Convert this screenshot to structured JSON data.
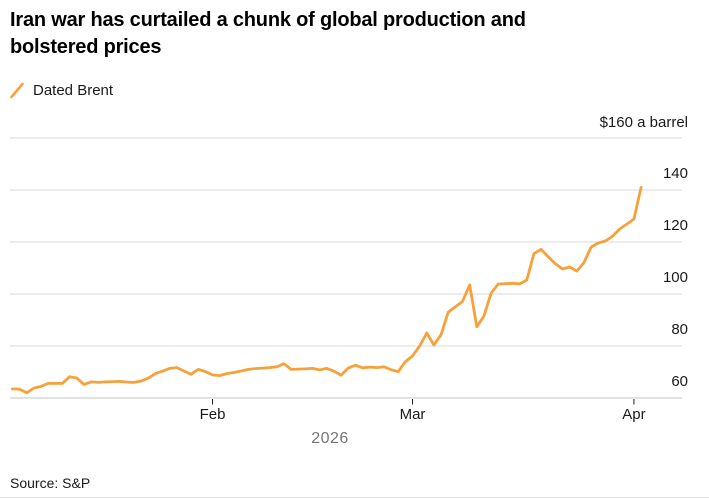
{
  "header": {
    "title_line1": "Iran war has curtailed a chunk of global production and",
    "title_line2": "bolstered prices"
  },
  "legend": {
    "series_label": "Dated Brent"
  },
  "source": "Source: S&P",
  "colors": {
    "line": "#F6A13C",
    "grid": "#D8D8D8",
    "baseline": "#C6C6C6",
    "tick": "#1a1a1a",
    "text": "#1a1a1a",
    "muted": "#767676",
    "bottom_rule": "#E7E7E7"
  },
  "chart_data": {
    "type": "line",
    "title": "Iran war has curtailed a chunk of global production and bolstered prices",
    "unit_label": "$160 a barrel",
    "legend_position": "top-left",
    "grid": "horizontal",
    "y_axis": {
      "side": "right",
      "min": 60,
      "max": 160,
      "gridline_values": [
        160,
        140,
        120,
        100,
        80,
        60
      ],
      "labeled_ticks": [
        "140",
        "120",
        "100",
        "80",
        "60"
      ]
    },
    "x_axis": {
      "year_label": "2026",
      "start_date": "Jan 4",
      "end_date": "Apr 2",
      "month_ticks": [
        {
          "label": "Feb",
          "day_index": 28
        },
        {
          "label": "Mar",
          "day_index": 56
        },
        {
          "label": "Apr",
          "day_index": 87
        }
      ]
    },
    "series": [
      {
        "name": "Dated Brent",
        "color": "#F6A13C",
        "points": [
          {
            "date": "Jan 4",
            "value": 63.5
          },
          {
            "date": "Jan 5",
            "value": 63.4
          },
          {
            "date": "Jan 6",
            "value": 62.0
          },
          {
            "date": "Jan 7",
            "value": 63.8
          },
          {
            "date": "Jan 8",
            "value": 64.5
          },
          {
            "date": "Jan 9",
            "value": 65.6
          },
          {
            "date": "Jan 10",
            "value": 65.6
          },
          {
            "date": "Jan 11",
            "value": 65.6
          },
          {
            "date": "Jan 12",
            "value": 68.2
          },
          {
            "date": "Jan 13",
            "value": 67.7
          },
          {
            "date": "Jan 14",
            "value": 65.2
          },
          {
            "date": "Jan 15",
            "value": 66.2
          },
          {
            "date": "Jan 16",
            "value": 66.0
          },
          {
            "date": "Jan 17",
            "value": 66.2
          },
          {
            "date": "Jan 18",
            "value": 66.3
          },
          {
            "date": "Jan 19",
            "value": 66.4
          },
          {
            "date": "Jan 20",
            "value": 66.1
          },
          {
            "date": "Jan 21",
            "value": 66.0
          },
          {
            "date": "Jan 22",
            "value": 66.5
          },
          {
            "date": "Jan 23",
            "value": 67.6
          },
          {
            "date": "Jan 24",
            "value": 69.4
          },
          {
            "date": "Jan 25",
            "value": 70.3
          },
          {
            "date": "Jan 26",
            "value": 71.4
          },
          {
            "date": "Jan 27",
            "value": 71.7
          },
          {
            "date": "Jan 28",
            "value": 70.4
          },
          {
            "date": "Jan 29",
            "value": 69.1
          },
          {
            "date": "Jan 30",
            "value": 71.0
          },
          {
            "date": "Jan 31",
            "value": 70.2
          },
          {
            "date": "Feb 1",
            "value": 68.9
          },
          {
            "date": "Feb 2",
            "value": 68.6
          },
          {
            "date": "Feb 3",
            "value": 69.4
          },
          {
            "date": "Feb 4",
            "value": 69.8
          },
          {
            "date": "Feb 5",
            "value": 70.4
          },
          {
            "date": "Feb 6",
            "value": 71.0
          },
          {
            "date": "Feb 7",
            "value": 71.3
          },
          {
            "date": "Feb 8",
            "value": 71.5
          },
          {
            "date": "Feb 9",
            "value": 71.7
          },
          {
            "date": "Feb 10",
            "value": 72.0
          },
          {
            "date": "Feb 11",
            "value": 73.2
          },
          {
            "date": "Feb 12",
            "value": 71.0
          },
          {
            "date": "Feb 13",
            "value": 71.1
          },
          {
            "date": "Feb 14",
            "value": 71.2
          },
          {
            "date": "Feb 15",
            "value": 71.4
          },
          {
            "date": "Feb 16",
            "value": 70.8
          },
          {
            "date": "Feb 17",
            "value": 71.4
          },
          {
            "date": "Feb 18",
            "value": 70.3
          },
          {
            "date": "Feb 19",
            "value": 68.8
          },
          {
            "date": "Feb 20",
            "value": 71.5
          },
          {
            "date": "Feb 21",
            "value": 72.6
          },
          {
            "date": "Feb 22",
            "value": 71.6
          },
          {
            "date": "Feb 23",
            "value": 71.9
          },
          {
            "date": "Feb 24",
            "value": 71.7
          },
          {
            "date": "Feb 25",
            "value": 72.0
          },
          {
            "date": "Feb 26",
            "value": 70.9
          },
          {
            "date": "Feb 27",
            "value": 70.1
          },
          {
            "date": "Feb 28",
            "value": 74.0
          },
          {
            "date": "Mar 1",
            "value": 76.2
          },
          {
            "date": "Mar 2",
            "value": 80.0
          },
          {
            "date": "Mar 3",
            "value": 85.0
          },
          {
            "date": "Mar 4",
            "value": 80.4
          },
          {
            "date": "Mar 5",
            "value": 84.4
          },
          {
            "date": "Mar 6",
            "value": 93.0
          },
          {
            "date": "Mar 7",
            "value": 95.1
          },
          {
            "date": "Mar 8",
            "value": 97.1
          },
          {
            "date": "Mar 9",
            "value": 103.5
          },
          {
            "date": "Mar 10",
            "value": 87.4
          },
          {
            "date": "Mar 11",
            "value": 91.5
          },
          {
            "date": "Mar 12",
            "value": 100.3
          },
          {
            "date": "Mar 13",
            "value": 103.8
          },
          {
            "date": "Mar 14",
            "value": 104.0
          },
          {
            "date": "Mar 15",
            "value": 104.1
          },
          {
            "date": "Mar 16",
            "value": 103.9
          },
          {
            "date": "Mar 17",
            "value": 105.4
          },
          {
            "date": "Mar 18",
            "value": 115.5
          },
          {
            "date": "Mar 19",
            "value": 117.2
          },
          {
            "date": "Mar 20",
            "value": 114.3
          },
          {
            "date": "Mar 21",
            "value": 111.6
          },
          {
            "date": "Mar 22",
            "value": 109.6
          },
          {
            "date": "Mar 23",
            "value": 110.4
          },
          {
            "date": "Mar 24",
            "value": 108.8
          },
          {
            "date": "Mar 25",
            "value": 112.0
          },
          {
            "date": "Mar 26",
            "value": 118.0
          },
          {
            "date": "Mar 27",
            "value": 119.6
          },
          {
            "date": "Mar 28",
            "value": 120.4
          },
          {
            "date": "Mar 29",
            "value": 122.2
          },
          {
            "date": "Mar 30",
            "value": 125.0
          },
          {
            "date": "Mar 31",
            "value": 126.9
          },
          {
            "date": "Apr 1",
            "value": 128.8
          },
          {
            "date": "Apr 2",
            "value": 141.0
          }
        ]
      }
    ]
  }
}
